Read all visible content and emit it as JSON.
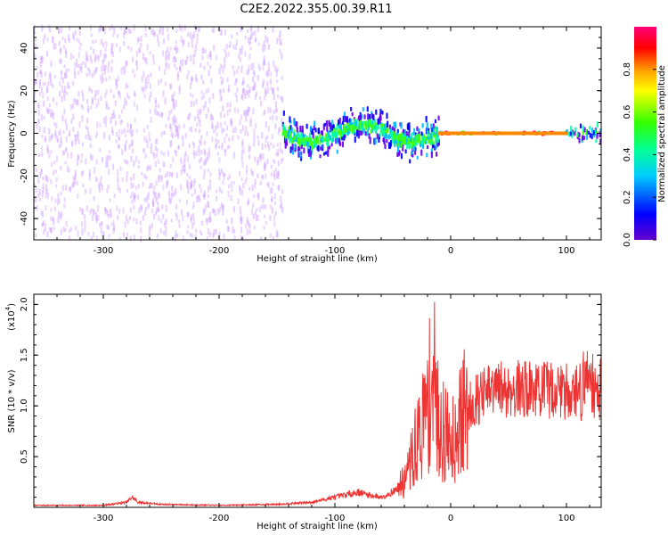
{
  "title": "C2E2.2022.355.00.39.R11",
  "colors": {
    "snr_line": "#ee3333",
    "background": "#ffffff",
    "axis": "#000000"
  },
  "chart_data": [
    {
      "type": "heatmap",
      "xlabel": "Height of straight line (km)",
      "ylabel": "Frequency (Hz)",
      "xlim": [
        -360,
        130
      ],
      "ylim": [
        -50,
        50
      ],
      "x_ticks": [
        -300,
        -200,
        -100,
        0,
        100
      ],
      "x_tick_labels": [
        "-300",
        "-200",
        "-100",
        "0",
        "100"
      ],
      "y_ticks": [
        -40,
        -20,
        0,
        20,
        40
      ],
      "y_tick_labels": [
        "-40",
        "-20",
        "0",
        "20",
        "40"
      ],
      "colorbar": {
        "label": "Normalized spectral amplitude",
        "range": [
          0,
          1
        ],
        "ticks": [
          0.0,
          0.2,
          0.4,
          0.6,
          0.8
        ],
        "tick_labels": [
          "0.0",
          "0.2",
          "0.4",
          "0.6",
          "0.8"
        ],
        "colormap": "rainbow: purple-blue-cyan-green-yellow-red-magenta"
      },
      "features": [
        {
          "x_range": [
            -360,
            -145
          ],
          "freq_spread": 50,
          "amplitude": 0.05
        },
        {
          "x_range": [
            -145,
            -10
          ],
          "freq_center_trend": "oscillating about 0 Hz",
          "freq_spread": 10,
          "amplitude": 0.3
        },
        {
          "x_range": [
            -10,
            100
          ],
          "freq_center": 0,
          "freq_spread": 1,
          "amplitude": 0.9
        },
        {
          "x_range": [
            100,
            130
          ],
          "freq_center": 0,
          "freq_spread": 5,
          "amplitude": 0.4
        }
      ]
    },
    {
      "type": "line",
      "xlabel": "Height of straight line (km)",
      "ylabel": "SNR (10 * v/v)",
      "y_scale_label": "(x10",
      "y_scale_exponent": "4",
      "xlim": [
        -360,
        130
      ],
      "ylim": [
        0,
        2.1
      ],
      "x_ticks": [
        -300,
        -200,
        -100,
        0,
        100
      ],
      "x_tick_labels": [
        "-300",
        "-200",
        "-100",
        "0",
        "100"
      ],
      "y_ticks": [
        0.5,
        1.0,
        1.5,
        2.0
      ],
      "y_tick_labels": [
        "0.5",
        "1.0",
        "1.5",
        "2.0"
      ],
      "series": [
        {
          "x": [
            -360,
            -300,
            -280,
            -275,
            -270,
            -250,
            -200,
            -150,
            -120,
            -100,
            -80,
            -70,
            -60,
            -50,
            -40,
            -30,
            -20,
            -15,
            -10,
            0,
            10,
            20,
            30,
            40,
            60,
            80,
            100,
            110,
            115,
            120,
            125,
            130
          ],
          "y": [
            0.02,
            0.02,
            0.05,
            0.1,
            0.05,
            0.03,
            0.02,
            0.03,
            0.05,
            0.1,
            0.15,
            0.12,
            0.1,
            0.15,
            0.25,
            0.6,
            1.0,
            1.3,
            0.8,
            0.65,
            0.9,
            1.05,
            1.12,
            1.16,
            1.17,
            1.16,
            1.15,
            1.14,
            1.2,
            1.4,
            1.1,
            1.2
          ]
        }
      ]
    }
  ]
}
